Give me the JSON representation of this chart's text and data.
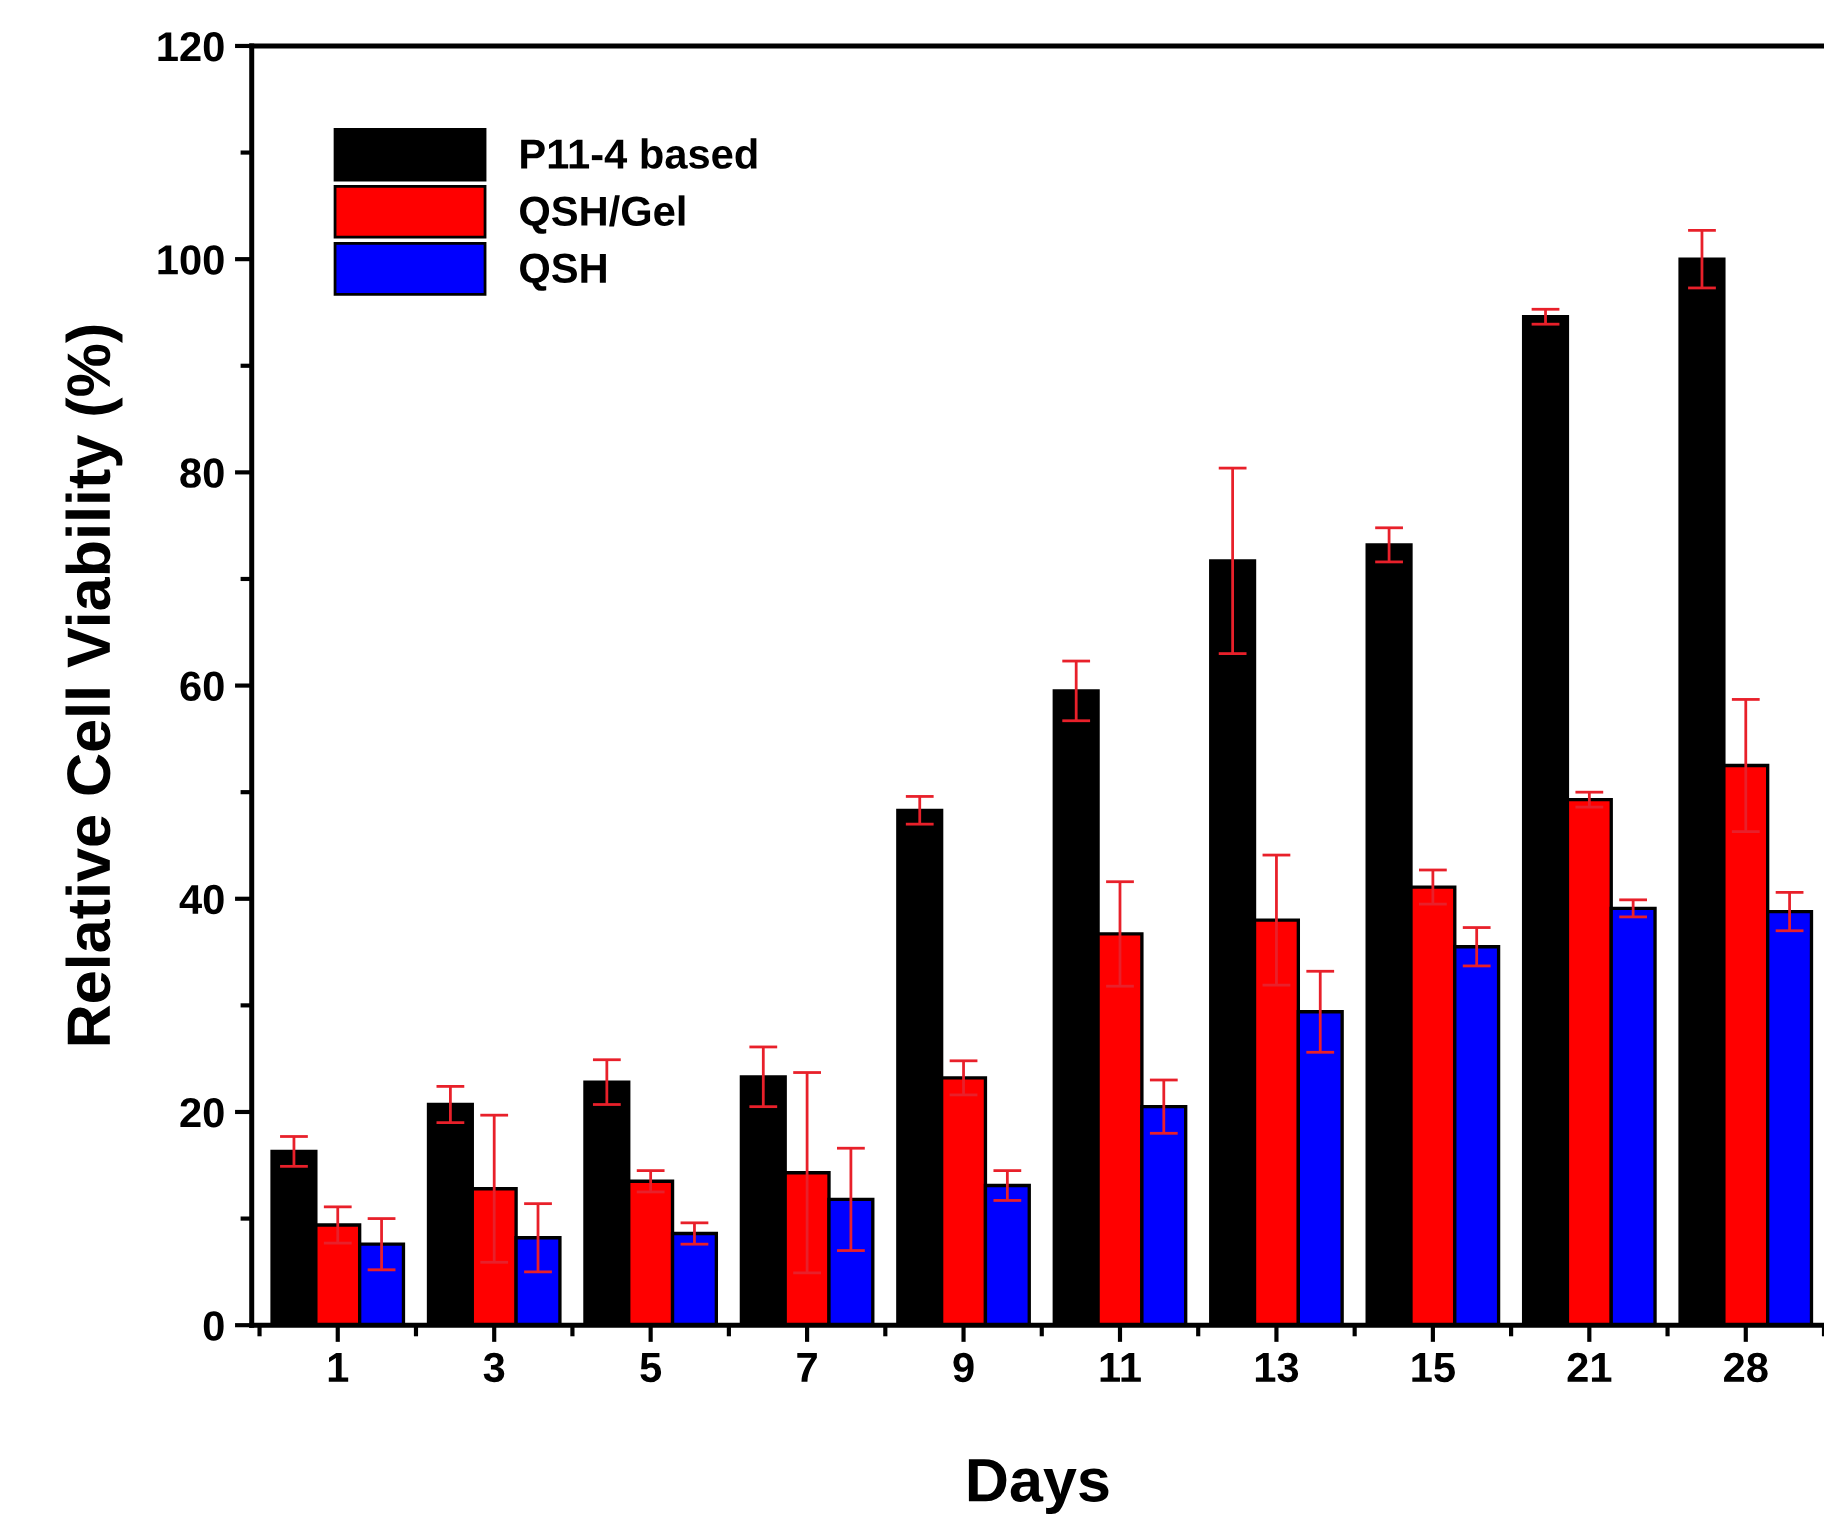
{
  "chart_data": {
    "type": "bar",
    "xlabel": "Days",
    "ylabel": "Relative Cell Viability (%)",
    "categories": [
      "1",
      "3",
      "5",
      "7",
      "9",
      "11",
      "13",
      "15",
      "21",
      "28"
    ],
    "series": [
      {
        "name": "P11-4 based",
        "color": "#000000",
        "values": [
          16.3,
          20.7,
          22.8,
          23.3,
          48.3,
          59.5,
          71.7,
          73.2,
          94.6,
          100.0
        ],
        "errors": [
          1.4,
          1.7,
          2.1,
          2.8,
          1.3,
          2.8,
          8.7,
          1.6,
          0.7,
          2.7
        ]
      },
      {
        "name": "QSH/Gel",
        "color": "#ff0000",
        "values": [
          9.4,
          12.8,
          13.5,
          14.3,
          23.2,
          36.7,
          38.0,
          41.1,
          49.3,
          52.5
        ],
        "errors": [
          1.7,
          6.9,
          1.0,
          9.4,
          1.6,
          4.9,
          6.1,
          1.6,
          0.7,
          6.2
        ]
      },
      {
        "name": "QSH",
        "color": "#0000ff",
        "values": [
          7.6,
          8.2,
          8.6,
          11.8,
          13.1,
          20.5,
          29.4,
          35.5,
          39.1,
          38.8
        ],
        "errors": [
          2.4,
          3.2,
          1.0,
          4.8,
          1.4,
          2.5,
          3.8,
          1.8,
          0.8,
          1.8
        ]
      }
    ],
    "ylim": [
      0,
      120
    ],
    "yticks": [
      0,
      20,
      40,
      60,
      80,
      100,
      120
    ],
    "grid": false,
    "legend": "top left"
  }
}
